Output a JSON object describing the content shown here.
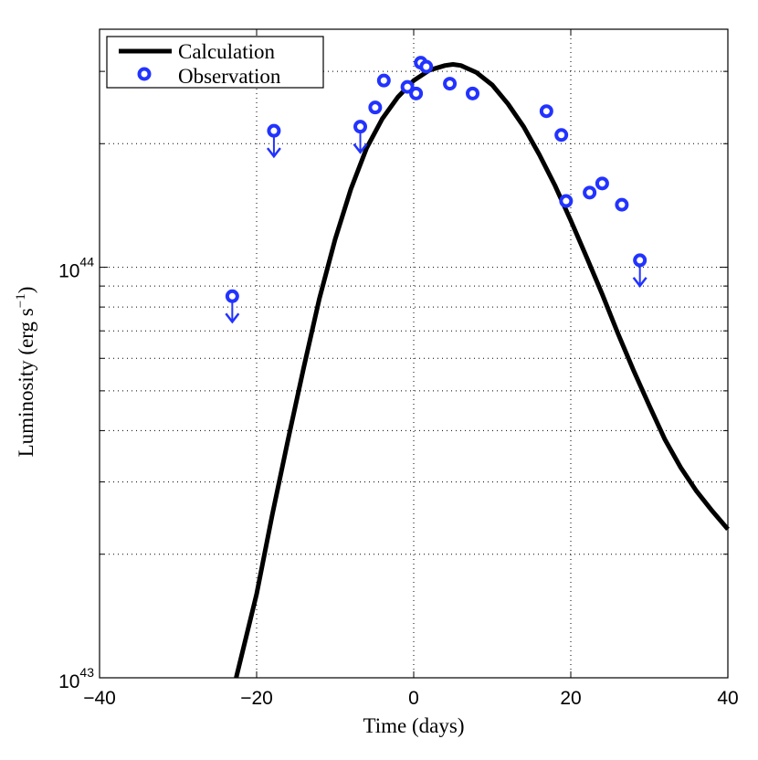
{
  "chart_data": {
    "type": "line",
    "title": "",
    "xlabel": "Time (days)",
    "ylabel": "Luminosity (erg s",
    "ylabel_unit_exp": "−1",
    "ylabel_close": ")",
    "xlim": [
      -40,
      40
    ],
    "ylim": [
      1e+43,
      3.8e+44
    ],
    "yscale": "log",
    "grid": true,
    "legend_position": "top-left",
    "x_ticks": [
      -40,
      -20,
      0,
      20,
      40
    ],
    "x_tick_labels": [
      "−40",
      "−20",
      "0",
      "20",
      "40"
    ],
    "y_major_ticks": [
      {
        "value": 1e+43,
        "base": "10",
        "exp": "43"
      },
      {
        "value": 1e+44,
        "base": "10",
        "exp": "44"
      }
    ],
    "y_minor_ticks": [
      2e+43,
      3e+43,
      4e+43,
      5e+43,
      6e+43,
      7e+43,
      8e+43,
      9e+43,
      2e+44,
      3e+44
    ],
    "series": [
      {
        "name": "Calculation",
        "style": "line",
        "color": "#000000",
        "x": [
          -22.6,
          -20,
          -18,
          -16,
          -14,
          -12,
          -10,
          -8,
          -6,
          -4,
          -2,
          0,
          2,
          4,
          5,
          6,
          8,
          10,
          12,
          14,
          16,
          18,
          20,
          22,
          24,
          26,
          28,
          30,
          32,
          34,
          36,
          38,
          40
        ],
        "y": [
          1e+43,
          1.6e+43,
          2.5e+43,
          3.8e+43,
          5.7e+43,
          8.4e+43,
          1.17e+44,
          1.55e+44,
          1.95e+44,
          2.3e+44,
          2.6e+44,
          2.85e+44,
          3.02e+44,
          3.1e+44,
          3.12e+44,
          3.1e+44,
          2.98e+44,
          2.78e+44,
          2.5e+44,
          2.2e+44,
          1.88e+44,
          1.58e+44,
          1.3e+44,
          1.06e+44,
          8.6e+43,
          6.9e+43,
          5.6e+43,
          4.6e+43,
          3.8e+43,
          3.25e+43,
          2.85e+43,
          2.55e+43,
          2.3e+43
        ]
      },
      {
        "name": "Observation",
        "style": "marker",
        "color": "#2233ff",
        "points": [
          {
            "x": -23.1,
            "y": 8.5e+43,
            "upper_limit": true
          },
          {
            "x": -17.8,
            "y": 2.15e+44,
            "upper_limit": true
          },
          {
            "x": -6.8,
            "y": 2.2e+44,
            "upper_limit": true
          },
          {
            "x": -4.9,
            "y": 2.45e+44,
            "upper_limit": false
          },
          {
            "x": -3.8,
            "y": 2.85e+44,
            "upper_limit": false
          },
          {
            "x": -0.8,
            "y": 2.75e+44,
            "upper_limit": false
          },
          {
            "x": 0.3,
            "y": 2.65e+44,
            "upper_limit": false
          },
          {
            "x": 0.9,
            "y": 3.15e+44,
            "upper_limit": false
          },
          {
            "x": 1.6,
            "y": 3.08e+44,
            "upper_limit": false
          },
          {
            "x": 4.6,
            "y": 2.8e+44,
            "upper_limit": false
          },
          {
            "x": 7.5,
            "y": 2.65e+44,
            "upper_limit": false
          },
          {
            "x": 16.9,
            "y": 2.4e+44,
            "upper_limit": false
          },
          {
            "x": 18.8,
            "y": 2.1e+44,
            "upper_limit": false
          },
          {
            "x": 19.4,
            "y": 1.45e+44,
            "upper_limit": false
          },
          {
            "x": 22.4,
            "y": 1.52e+44,
            "upper_limit": false
          },
          {
            "x": 24.0,
            "y": 1.6e+44,
            "upper_limit": false
          },
          {
            "x": 26.5,
            "y": 1.42e+44,
            "upper_limit": false
          },
          {
            "x": 28.8,
            "y": 1.04e+44,
            "upper_limit": true
          }
        ]
      }
    ]
  }
}
